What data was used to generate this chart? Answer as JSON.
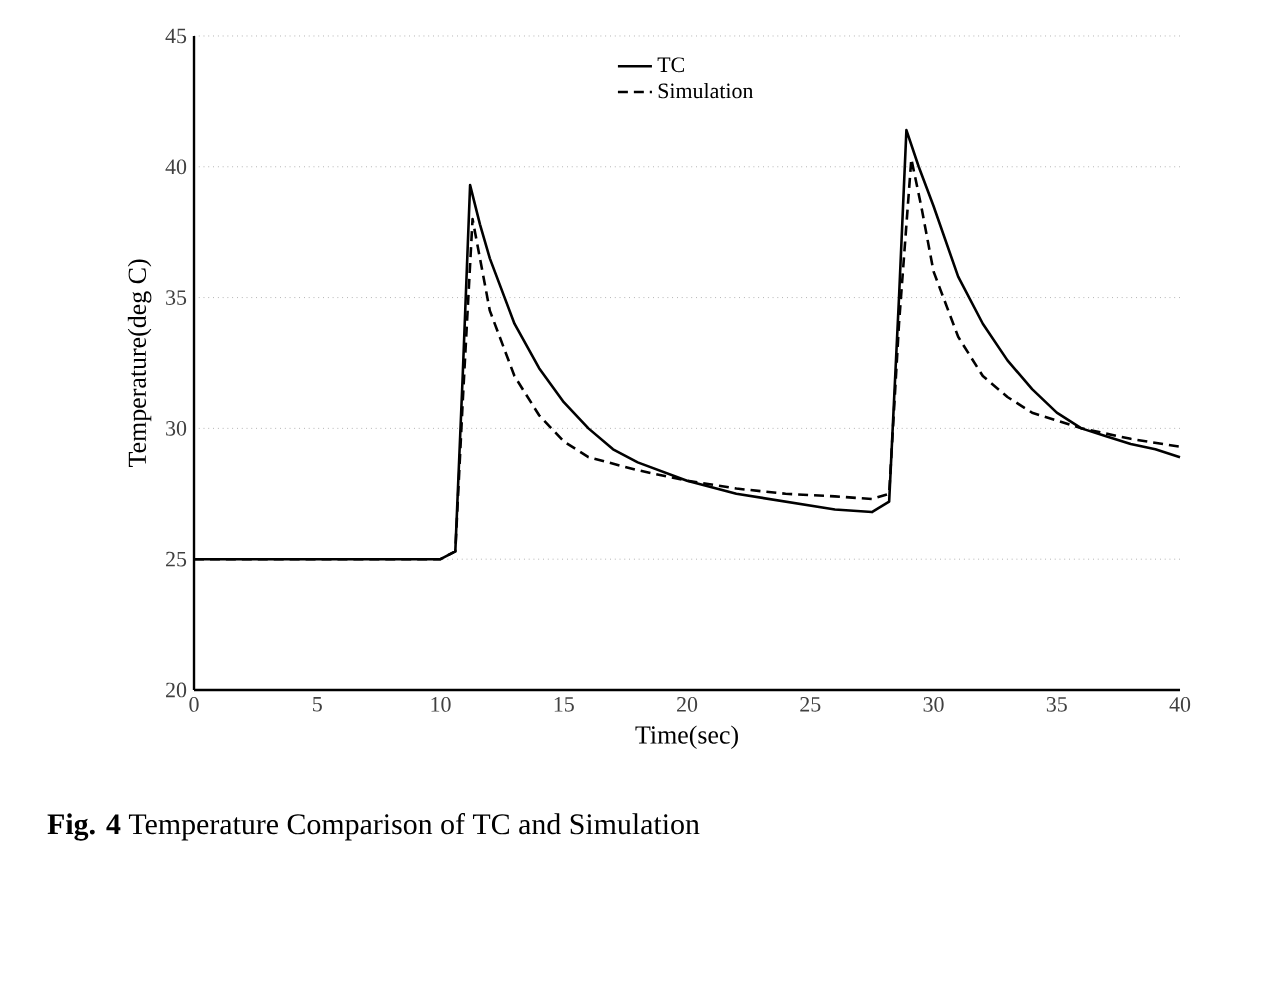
{
  "chart_data": {
    "type": "line",
    "xlabel": "Time(sec)",
    "ylabel": "Temperature(deg C)",
    "annotations": [
      "**Fig. 4** Temperature Comparison of TC and Simulation"
    ],
    "xlim": [
      0,
      40
    ],
    "xticks": [
      0,
      5,
      10,
      15,
      20,
      25,
      30,
      35,
      40
    ],
    "ylim": [
      20,
      45
    ],
    "yticks": [
      20,
      25,
      30,
      35,
      40,
      45
    ],
    "grid": "y",
    "legend": "top",
    "series": [
      {
        "name": "TC",
        "color": "#000000",
        "line_style": "solid",
        "x": [
          0,
          2,
          4,
          6,
          8,
          10,
          10.6,
          10.9,
          11.2,
          11.6,
          12,
          13,
          14,
          15,
          16,
          17,
          18,
          20,
          22,
          24,
          26,
          27.5,
          28.2,
          28.6,
          28.9,
          29.4,
          30,
          31,
          32,
          33,
          34,
          35,
          36,
          37,
          38,
          39,
          40
        ],
        "values": [
          25,
          25,
          25,
          25,
          25,
          25,
          25.3,
          32,
          39.3,
          37.8,
          36.5,
          34,
          32.3,
          31,
          30,
          29.2,
          28.7,
          28,
          27.5,
          27.2,
          26.9,
          26.8,
          27.2,
          35,
          41.4,
          40,
          38.5,
          35.8,
          34,
          32.6,
          31.5,
          30.6,
          30,
          29.7,
          29.4,
          29.2,
          28.9
        ]
      },
      {
        "name": "Simulation",
        "color": "#000000",
        "line_style": "dashed",
        "x": [
          0,
          2,
          4,
          6,
          8,
          10,
          10.6,
          10.9,
          11.3,
          11.6,
          12,
          13,
          14,
          15,
          16,
          18,
          20,
          22,
          24,
          26,
          27.5,
          28.2,
          28.6,
          29.1,
          29.5,
          30,
          31,
          32,
          33,
          34,
          35,
          36,
          38,
          40
        ],
        "values": [
          25,
          25,
          25,
          25,
          25,
          25,
          25.3,
          31,
          38,
          36.5,
          34.5,
          32,
          30.5,
          29.5,
          28.9,
          28.4,
          28,
          27.7,
          27.5,
          27.4,
          27.3,
          27.5,
          34,
          40.3,
          38.5,
          36,
          33.5,
          32,
          31.2,
          30.6,
          30.3,
          30,
          29.6,
          29.3
        ]
      }
    ]
  }
}
